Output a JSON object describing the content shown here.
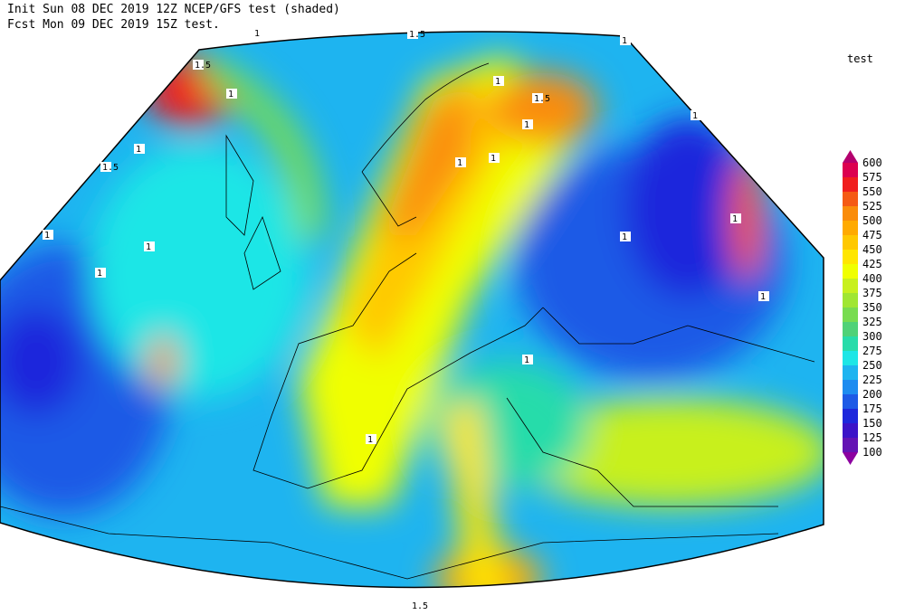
{
  "header": {
    "line1": "Init  Sun 08 DEC 2019 12Z  NCEP/GFS test (shaded)",
    "line2": "Fcst Mon 09 DEC 2019 15Z test."
  },
  "legend": {
    "title": "test",
    "levels": [
      600,
      575,
      550,
      525,
      500,
      475,
      450,
      425,
      400,
      375,
      350,
      325,
      300,
      275,
      250,
      225,
      200,
      175,
      150,
      125,
      100
    ],
    "colors": [
      "#b4006e",
      "#dc0050",
      "#f01e1e",
      "#f55a14",
      "#fa8c0a",
      "#ffaa00",
      "#ffc800",
      "#ffe600",
      "#f0ff00",
      "#c8f01e",
      "#a0e632",
      "#78dc50",
      "#50d278",
      "#28dcaa",
      "#1ee6e6",
      "#1eb4f0",
      "#1e8cf0",
      "#1e5ae6",
      "#1e28dc",
      "#3c14c8",
      "#6414b4",
      "#8c00a0"
    ]
  },
  "contour_labels": [
    "1.5",
    "1.5",
    "1.5",
    "1",
    "1",
    "1.5",
    "1",
    "1",
    "1",
    "1",
    "1",
    "1",
    "1",
    "1",
    "1",
    "1",
    "1",
    "1",
    "1",
    "1",
    "1",
    "1.5"
  ]
}
